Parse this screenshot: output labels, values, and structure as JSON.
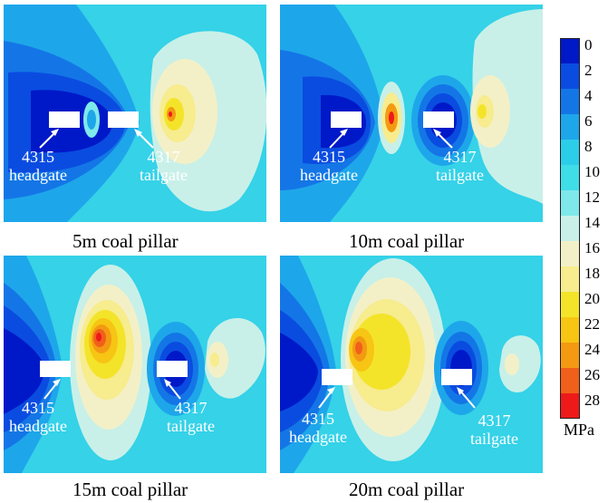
{
  "panels": [
    {
      "caption": "5m coal pillar",
      "label_a": [
        "4315",
        "headgate"
      ],
      "label_b": [
        "4317",
        "tailgate"
      ]
    },
    {
      "caption": "10m coal pillar",
      "label_a": [
        "4315",
        "headgate"
      ],
      "label_b": [
        "4317",
        "tailgate"
      ]
    },
    {
      "caption": "15m coal pillar",
      "label_a": [
        "4315",
        "headgate"
      ],
      "label_b": [
        "4317",
        "tailgate"
      ]
    },
    {
      "caption": "20m coal pillar",
      "label_a": [
        "4315",
        "headgate"
      ],
      "label_b": [
        "4317",
        "tailgate"
      ]
    }
  ],
  "legend": {
    "unit": "MPa",
    "ticks": [
      "0",
      "2",
      "4",
      "6",
      "8",
      "10",
      "12",
      "14",
      "16",
      "18",
      "20",
      "22",
      "24",
      "26",
      "28"
    ],
    "colors": [
      "#0019c8",
      "#0a4ce0",
      "#1476e6",
      "#1ea6ea",
      "#2ccde9",
      "#3fdde8",
      "#7ee8ea",
      "#c8f0e8",
      "#f3f0c8",
      "#f7ec8e",
      "#f3e42a",
      "#f7c514",
      "#f39a12",
      "#f0601a",
      "#ee1a1a"
    ]
  }
}
